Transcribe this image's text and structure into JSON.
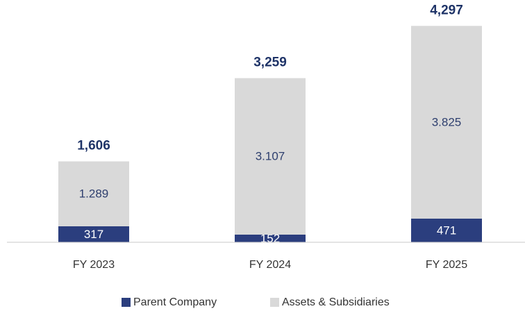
{
  "chart_data": {
    "type": "stacked_bar",
    "categories": [
      "FY 2023",
      "FY 2024",
      "FY 2025"
    ],
    "series": [
      {
        "name": "Parent Company",
        "color": "#2b3e7e",
        "values": [
          317,
          152,
          471
        ]
      },
      {
        "name": "Assets & Subsidiaries",
        "color": "#d9d9d9",
        "values": [
          1289,
          3107,
          3825
        ],
        "value_labels": [
          "1.289",
          "3.107",
          "3.825"
        ]
      }
    ],
    "totals": {
      "values": [
        1606,
        3259,
        4297
      ],
      "value_labels": [
        "1,606",
        "3,259",
        "4,297"
      ]
    },
    "ylim": [
      0,
      4300
    ]
  }
}
